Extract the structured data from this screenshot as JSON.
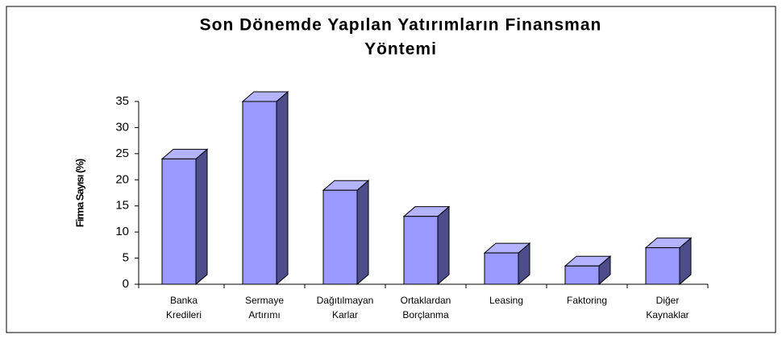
{
  "chart_data": {
    "type": "bar3d",
    "title": [
      "Son Dönemde Yapılan Yatırımların Finansman",
      "Yöntemi"
    ],
    "y_label": "Firma Sayısı (%)",
    "categories": [
      [
        "Banka",
        "Kredileri"
      ],
      [
        "Sermaye",
        "Artırımı"
      ],
      [
        "Dağıtılmayan",
        "Karlar"
      ],
      [
        "Ortaklardan",
        "Borçlanma"
      ],
      [
        "Leasing"
      ],
      [
        "Faktoring"
      ],
      [
        "Diğer",
        "Kaynaklar"
      ]
    ],
    "values": [
      24,
      35,
      18,
      13,
      6,
      3.5,
      7
    ],
    "color": "#9999ff",
    "ylim": [
      0,
      35
    ],
    "yticks": [
      0,
      5,
      10,
      15,
      20,
      25,
      30,
      35
    ],
    "grid": false
  }
}
